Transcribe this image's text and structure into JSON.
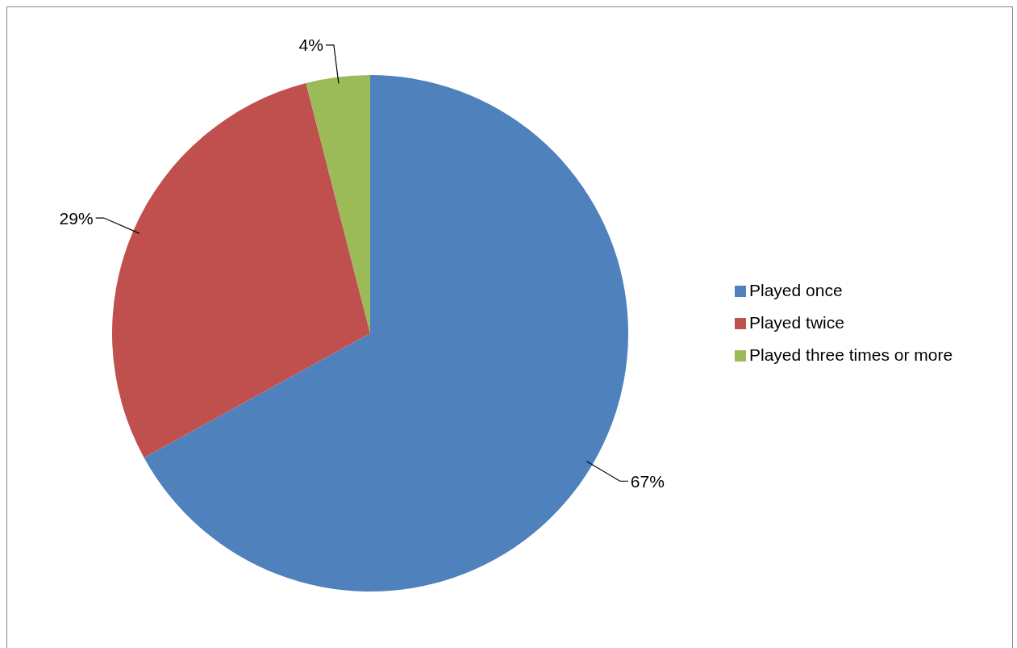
{
  "chart_data": {
    "type": "pie",
    "categories": [
      "Played once",
      "Played twice",
      "Played three times or more"
    ],
    "values": [
      67,
      29,
      4
    ],
    "colors": [
      "#4f81bd",
      "#c0504d",
      "#9bbb59"
    ],
    "value_labels": [
      "67%",
      "29%",
      "4%"
    ],
    "legend": "right"
  }
}
